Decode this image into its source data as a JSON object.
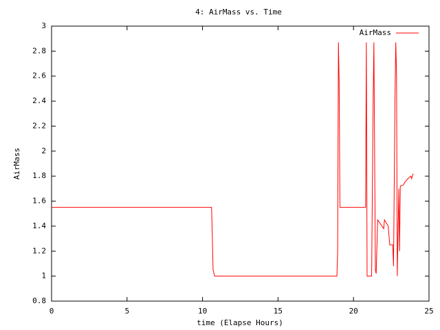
{
  "chart_data": {
    "type": "line",
    "title": "4: AirMass vs. Time",
    "xlabel": "time (Elapse Hours)",
    "ylabel": "AirMass",
    "x": [
      0,
      10.6,
      10.65,
      10.7,
      10.8,
      18.9,
      18.95,
      19.0,
      19.05,
      19.1,
      20.8,
      20.85,
      20.9,
      21.2,
      21.3,
      21.35,
      21.45,
      21.5,
      21.6,
      22.0,
      22.05,
      22.3,
      22.4,
      22.6,
      22.65,
      22.75,
      22.8,
      22.85,
      22.9,
      23.0,
      23.05,
      23.1,
      23.3,
      23.4,
      23.6,
      23.8,
      23.85,
      23.95
    ],
    "series": [
      {
        "name": "AirMass",
        "color": "#ff0000",
        "values": [
          1.55,
          1.55,
          1.3,
          1.05,
          1.0,
          1.0,
          1.2,
          2.87,
          2.55,
          1.55,
          1.55,
          2.87,
          1.0,
          1.0,
          2.4,
          2.87,
          1.05,
          1.02,
          1.45,
          1.38,
          1.45,
          1.4,
          1.25,
          1.25,
          1.08,
          2.45,
          2.87,
          2.6,
          1.0,
          1.7,
          1.2,
          1.72,
          1.73,
          1.75,
          1.78,
          1.8,
          1.78,
          1.82
        ]
      }
    ],
    "xlim": [
      0,
      25
    ],
    "ylim": [
      0.8,
      3
    ],
    "xticks": [
      0,
      5,
      10,
      15,
      20,
      25
    ],
    "yticks": [
      0.8,
      1,
      1.2,
      1.4,
      1.6,
      1.8,
      2,
      2.2,
      2.4,
      2.6,
      2.8,
      3
    ],
    "legend": "top right"
  }
}
